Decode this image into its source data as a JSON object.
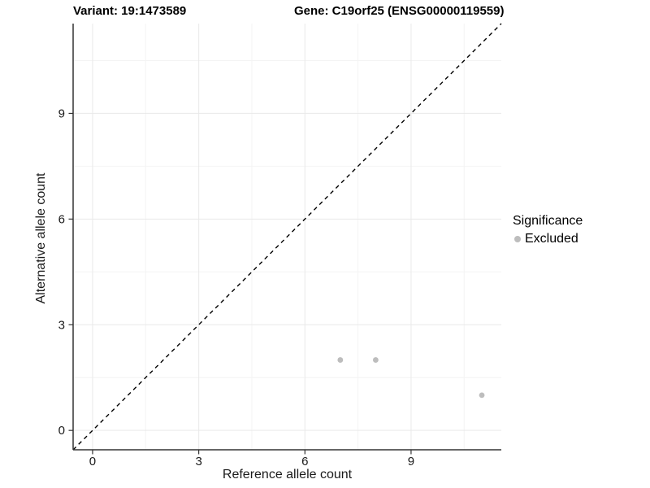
{
  "figure": {
    "title_variant": "Variant: 19:1473589",
    "title_gene": "Gene: C19orf25 (ENSG00000119559)"
  },
  "chart_data": {
    "type": "scatter",
    "title": "Variant: 19:1473589",
    "subtitle": "Gene: C19orf25 (ENSG00000119559)",
    "xlabel": "Reference allele count",
    "ylabel": "Alternative allele count",
    "xlim": [
      -0.55,
      11.55
    ],
    "ylim": [
      -0.55,
      11.55
    ],
    "x_major_ticks": [
      0,
      3,
      6,
      9
    ],
    "y_major_ticks": [
      0,
      3,
      6,
      9
    ],
    "x_minor_gridlines": [
      1.5,
      4.5,
      7.5,
      10.5
    ],
    "y_minor_gridlines": [
      1.5,
      4.5,
      7.5,
      10.5
    ],
    "grid": "major and minor, light grey on white",
    "series": [
      {
        "name": "Excluded",
        "marker": "circle",
        "color": "#bdbdbd",
        "points": [
          [
            7,
            2
          ],
          [
            8,
            2
          ],
          [
            11,
            1
          ]
        ]
      }
    ],
    "reference_line": {
      "kind": "identity y=x",
      "style": "dashed",
      "color": "#000000",
      "from": [
        -0.55,
        -0.55
      ],
      "to": [
        11.55,
        11.55
      ]
    },
    "legend": {
      "title": "Significance",
      "position": "right",
      "items": [
        {
          "label": "Excluded",
          "color": "#bdbdbd"
        }
      ]
    }
  },
  "colors": {
    "background": "#ffffff",
    "axis_line": "#333333",
    "tick_mark": "#333333",
    "tick_label": "#1a1a1a",
    "major_grid": "#e9e9e9",
    "minor_grid": "#f4f4f4",
    "point": "#bdbdbd",
    "title": "#000000"
  }
}
